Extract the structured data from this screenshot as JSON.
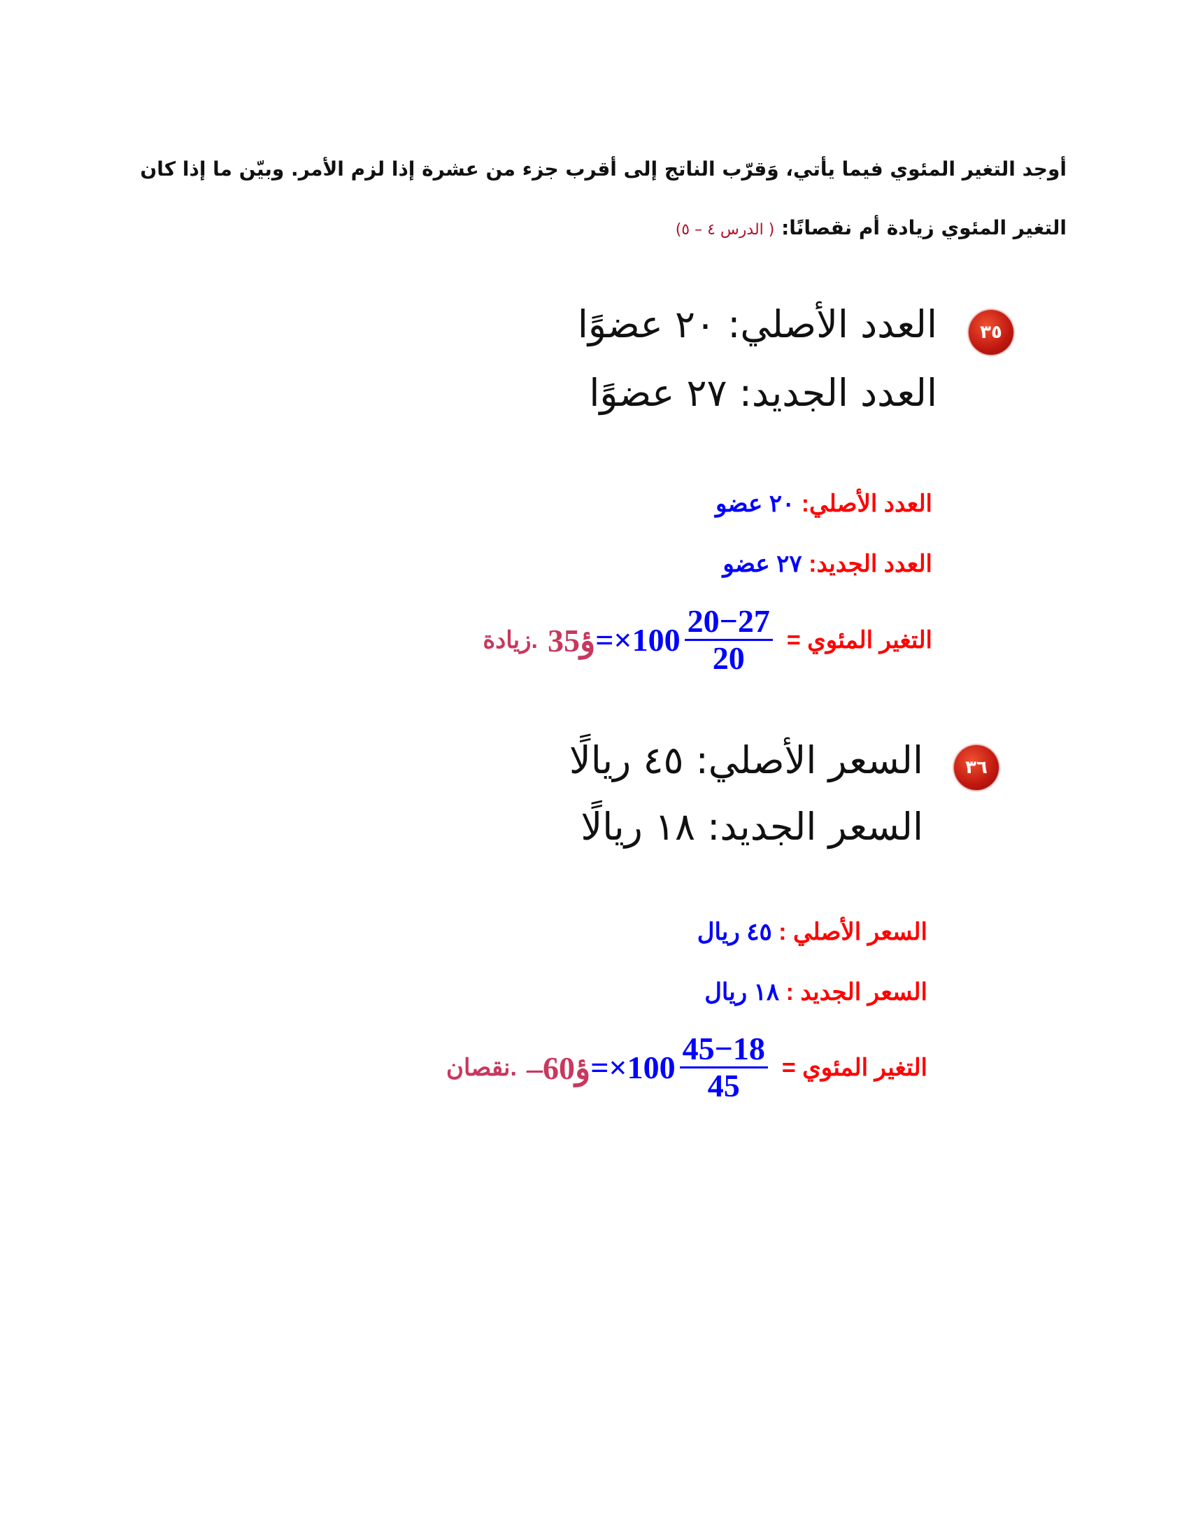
{
  "instructions": {
    "line1": "أوجد التغير المئوي فيما يأتي، وَقرّب الناتج إلى أقرب جزء من عشرة إذا لزم الأمر. وبيّن ما إذا كان التغير المئوي",
    "line2": "زيادة أم نقصانًا:",
    "lesson_ref": "( الدرس ٤ – ٥)"
  },
  "problems": [
    {
      "number": "٣٥",
      "original": "العدد الأصلي: ٢٠ عضوًا",
      "new": "العدد الجديد: ٢٧ عضوًا",
      "solution": {
        "original_label": "العدد الأصلي:",
        "original_value": "٢٠ عضو",
        "new_label": "العدد الجديد:",
        "new_value": "٢٧ عضو",
        "change_label": "التغير المئوي =",
        "numerator": "20−27",
        "denominator": "20",
        "multiplier": "×100",
        "equals": "=",
        "result": "35ؤ",
        "result_word": "زيادة."
      }
    },
    {
      "number": "٣٦",
      "original": "السعر الأصلي: ٤٥ ريالًا",
      "new": "السعر الجديد: ١٨ ريالًا",
      "solution": {
        "original_label": "السعر الأصلي :",
        "original_value": "٤٥ ريال",
        "new_label": "السعر الجديد :",
        "new_value": "١٨ ريال",
        "change_label": "التغير المئوي =",
        "numerator": "45−18",
        "denominator": "45",
        "multiplier": "×100",
        "equals": "=",
        "result": "–60ؤ",
        "result_word": "نقصان."
      }
    }
  ],
  "colors": {
    "label": "#ff0000",
    "value": "#0000ff",
    "result": "#c8385e",
    "badge": "#c01810"
  }
}
